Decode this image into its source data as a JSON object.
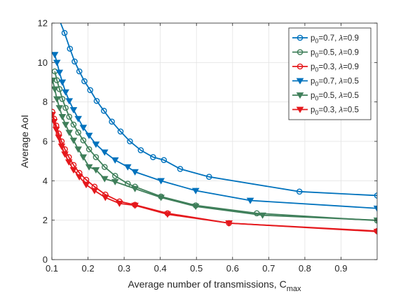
{
  "chart_data": {
    "type": "line",
    "xlabel": "Average number of transmissions, C",
    "xlabel_sub": "max",
    "ylabel": "Average AoI",
    "xlim": [
      0.1,
      1.0
    ],
    "ylim": [
      0,
      12
    ],
    "x_ticks": [
      0.1,
      0.2,
      0.3,
      0.4,
      0.5,
      0.6,
      0.7,
      0.8,
      0.9
    ],
    "x_tick_labels": [
      "0.1",
      "0.2",
      "0.3",
      "0.4",
      "0.5",
      "0.6",
      "0.7",
      "0.8",
      "0.9"
    ],
    "y_ticks": [
      0,
      2,
      4,
      6,
      8,
      10,
      12
    ],
    "y_tick_labels": [
      "0",
      "2",
      "4",
      "6",
      "8",
      "10",
      "12"
    ],
    "grid": true,
    "legend_position": "top-right",
    "series": [
      {
        "name": "p0=0.7, λ=0.9",
        "label_parts": {
          "p": "p",
          "sub": "0",
          "mid": "=0.7, ",
          "lambda": "λ",
          "end": "=0.9"
        },
        "color": "#0072BD",
        "marker": "circle",
        "x": [
          0.12,
          0.135,
          0.15,
          0.163,
          0.176,
          0.19,
          0.206,
          0.224,
          0.244,
          0.266,
          0.29,
          0.316,
          0.346,
          0.38,
          0.41,
          0.455,
          0.535,
          0.785,
          1.0
        ],
        "y": [
          12.2,
          11.5,
          10.7,
          10.05,
          9.55,
          9.05,
          8.6,
          8.05,
          7.55,
          7.0,
          6.5,
          6.0,
          5.55,
          5.2,
          5.05,
          4.6,
          4.2,
          3.45,
          3.25
        ]
      },
      {
        "name": "p0=0.5, λ=0.9",
        "label_parts": {
          "p": "p",
          "sub": "0",
          "mid": "=0.5, ",
          "lambda": "λ",
          "end": "=0.9"
        },
        "color": "#3F7F5A",
        "marker": "circle",
        "x": [
          0.108,
          0.114,
          0.121,
          0.129,
          0.138,
          0.148,
          0.16,
          0.173,
          0.187,
          0.203,
          0.222,
          0.246,
          0.275,
          0.31,
          0.33,
          0.402,
          0.498,
          0.667,
          1.0
        ],
        "y": [
          9.55,
          9.1,
          8.65,
          8.15,
          7.7,
          7.25,
          6.85,
          6.45,
          6.05,
          5.6,
          5.2,
          4.7,
          4.25,
          3.85,
          3.7,
          3.2,
          2.75,
          2.35,
          1.98
        ]
      },
      {
        "name": "p0=0.3, λ=0.9",
        "label_parts": {
          "p": "p",
          "sub": "0",
          "mid": "=0.3, ",
          "lambda": "λ",
          "end": "=0.9"
        },
        "color": "#E5181C",
        "marker": "circle",
        "x": [
          0.101,
          0.106,
          0.112,
          0.119,
          0.127,
          0.136,
          0.147,
          0.16,
          0.176,
          0.195,
          0.218,
          0.248,
          0.287,
          0.33,
          0.42,
          0.59,
          1.0
        ],
        "y": [
          7.5,
          7.15,
          6.8,
          6.4,
          6.0,
          5.6,
          5.2,
          4.8,
          4.4,
          4.05,
          3.7,
          3.3,
          2.95,
          2.78,
          2.35,
          1.85,
          1.45
        ]
      },
      {
        "name": "p0=0.7, λ=0.5",
        "label_parts": {
          "p": "p",
          "sub": "0",
          "mid": "=0.7, ",
          "lambda": "λ",
          "end": "=0.5"
        },
        "color": "#0072BD",
        "marker": "triangle-down",
        "x": [
          0.108,
          0.114,
          0.121,
          0.129,
          0.138,
          0.148,
          0.16,
          0.173,
          0.187,
          0.203,
          0.222,
          0.246,
          0.275,
          0.31,
          0.33,
          0.402,
          0.498,
          0.649,
          1.0
        ],
        "y": [
          10.4,
          10.0,
          9.5,
          9.0,
          8.5,
          8.05,
          7.6,
          7.15,
          6.7,
          6.3,
          5.85,
          5.45,
          5.05,
          4.7,
          4.45,
          4.0,
          3.5,
          3.0,
          2.6
        ]
      },
      {
        "name": "p0=0.5, λ=0.5",
        "label_parts": {
          "p": "p",
          "sub": "0",
          "mid": "=0.5, ",
          "lambda": "λ",
          "end": "=0.5"
        },
        "color": "#3F7F5A",
        "marker": "triangle-down",
        "x": [
          0.102,
          0.108,
          0.114,
          0.121,
          0.129,
          0.138,
          0.148,
          0.16,
          0.173,
          0.187,
          0.203,
          0.222,
          0.246,
          0.275,
          0.33,
          0.402,
          0.498,
          0.683,
          1.0
        ],
        "y": [
          9.1,
          8.65,
          8.15,
          7.7,
          7.25,
          6.85,
          6.45,
          6.05,
          5.6,
          5.2,
          4.7,
          4.55,
          4.1,
          3.95,
          3.6,
          3.15,
          2.7,
          2.25,
          2.0
        ]
      },
      {
        "name": "p0=0.3, λ=0.5",
        "label_parts": {
          "p": "p",
          "sub": "0",
          "mid": "=0.3, ",
          "lambda": "λ",
          "end": "=0.5"
        },
        "color": "#E5181C",
        "marker": "triangle-down",
        "x": [
          0.101,
          0.106,
          0.112,
          0.119,
          0.127,
          0.136,
          0.147,
          0.16,
          0.176,
          0.195,
          0.218,
          0.248,
          0.287,
          0.33,
          0.42,
          0.59,
          1.0
        ],
        "y": [
          7.35,
          7.0,
          6.6,
          6.2,
          5.75,
          5.35,
          4.95,
          4.55,
          4.2,
          3.8,
          3.5,
          3.15,
          2.85,
          2.75,
          2.3,
          1.85,
          1.42
        ]
      }
    ]
  }
}
